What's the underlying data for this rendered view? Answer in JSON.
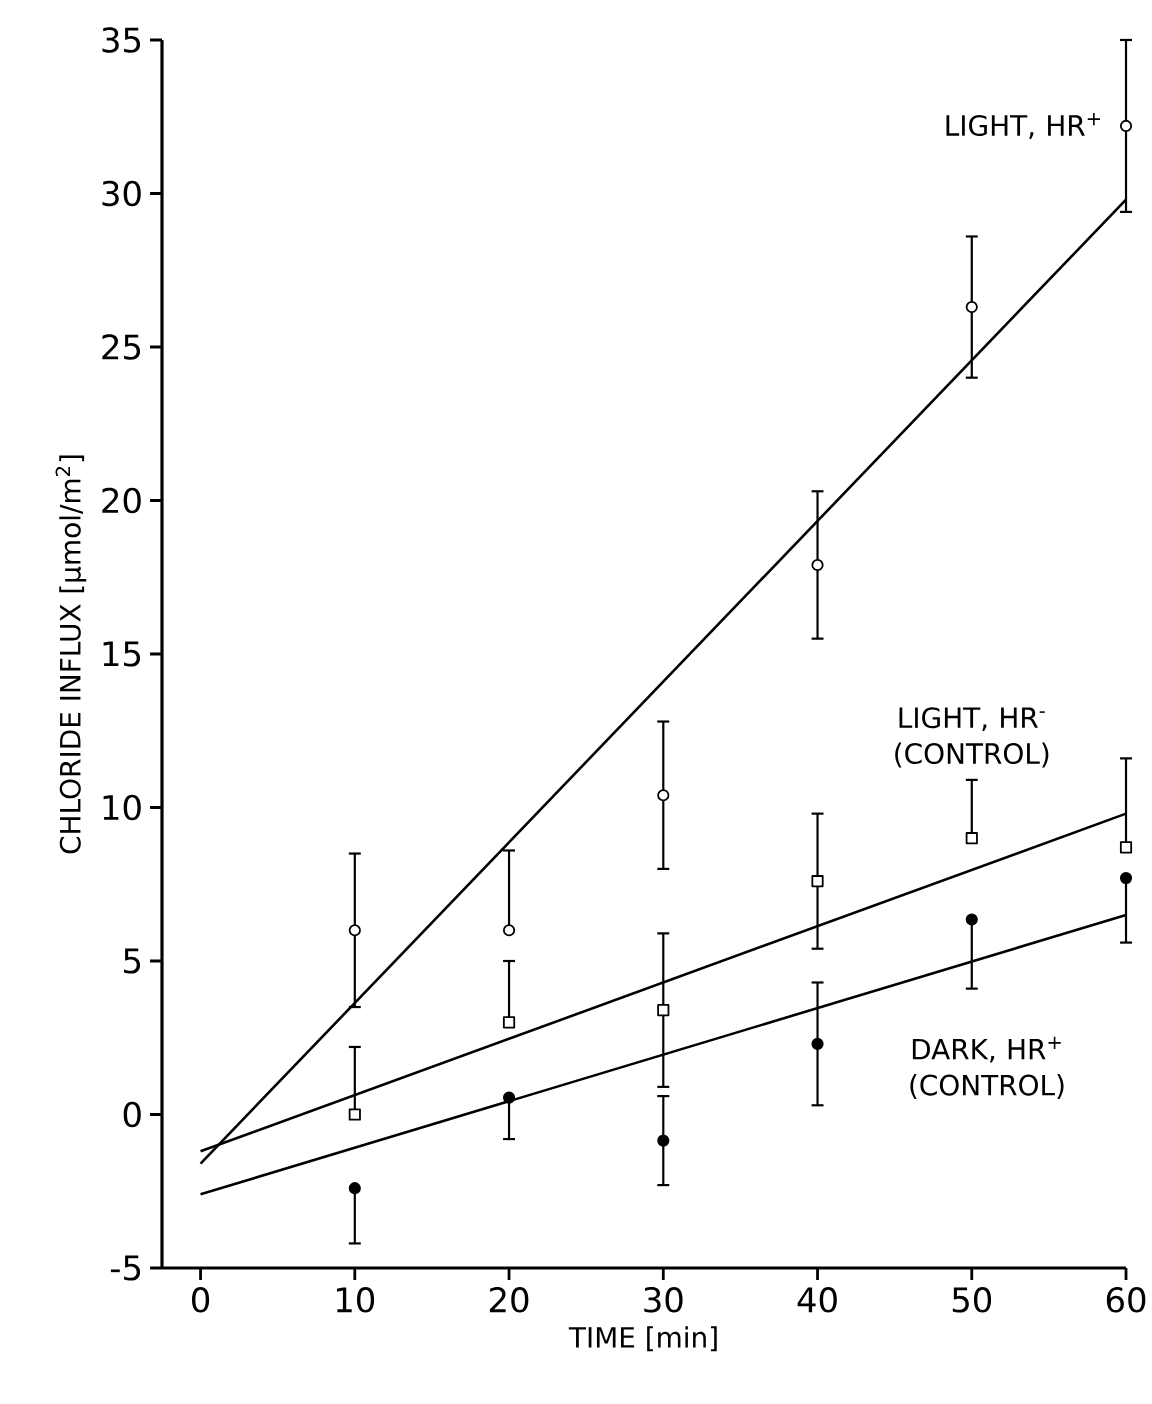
{
  "chart_data": {
    "type": "scatter",
    "xlabel": "TIME [min]",
    "ylabel": "CHLORIDE INFLUX [µmol/m$^{2}$]",
    "xlim": [
      -2.5,
      60
    ],
    "ylim": [
      -5,
      35
    ],
    "xticks": [
      0,
      10,
      20,
      30,
      40,
      50,
      60
    ],
    "yticks": [
      -5,
      0,
      5,
      10,
      15,
      20,
      25,
      30,
      35
    ],
    "grid": false,
    "series": [
      {
        "name": "LIGHT, HR$^{+}$",
        "marker": "circle",
        "color": "#ffffff",
        "x": [
          10,
          20,
          30,
          40,
          50,
          60
        ],
        "values": [
          6.0,
          6.0,
          10.4,
          17.9,
          26.3,
          32.2
        ],
        "errors": [
          2.5,
          [
            6.0,
            8.6
          ],
          2.4,
          2.4,
          2.3,
          2.8
        ]
      },
      {
        "name": "LIGHT, HR$^{-}$ (CONTROL)",
        "marker": "square",
        "color": "#ffffff",
        "x": [
          10,
          20,
          30,
          40,
          50,
          60
        ],
        "values": [
          0.0,
          3.0,
          3.4,
          7.6,
          9.0,
          8.7
        ],
        "errors": [
          [
            0.0,
            2.2
          ],
          [
            3.0,
            5.0
          ],
          2.5,
          2.2,
          [
            9.0,
            10.9
          ],
          [
            8.7,
            11.6
          ]
        ]
      },
      {
        "name": "DARK, HR$^{+}$ (CONTROL)",
        "marker": "circle",
        "color": "#000000",
        "x": [
          10,
          20,
          30,
          40,
          50,
          60
        ],
        "values": [
          -2.4,
          0.55,
          -0.85,
          2.3,
          6.35,
          7.7
        ],
        "errors": [
          [
            -4.2,
            -2.4
          ],
          [
            -0.8,
            0.55
          ],
          1.45,
          2.0,
          [
            4.1,
            6.35
          ],
          [
            5.6,
            7.7
          ]
        ]
      },
      {
        "type": "line",
        "marker": "none",
        "line_style": "solid",
        "color": "#000000",
        "x": [
          0,
          60
        ],
        "values": [
          -1.6,
          29.8
        ]
      },
      {
        "type": "line",
        "marker": "none",
        "line_style": "solid",
        "color": "#000000",
        "x": [
          0,
          60
        ],
        "values": [
          -1.2,
          9.8
        ]
      },
      {
        "type": "line",
        "marker": "none",
        "line_style": "solid",
        "color": "#000000",
        "x": [
          0,
          60
        ],
        "values": [
          -2.6,
          6.5
        ]
      }
    ]
  }
}
